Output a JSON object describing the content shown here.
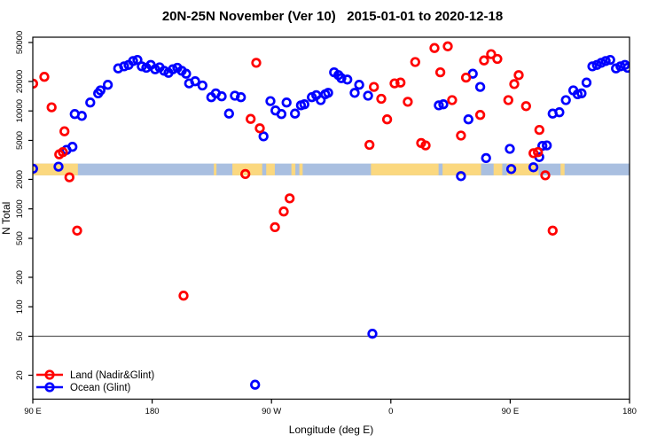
{
  "title": "20N-25N November (Ver 10)   2015-01-01 to 2020-12-18",
  "chart_data": {
    "type": "scatter",
    "title": "20N-25N November (Ver 10)   2015-01-01 to 2020-12-18",
    "xlabel": "Longitude (deg E)",
    "ylabel": "N Total",
    "x_axis": {
      "range": [
        90,
        540
      ],
      "ticks": [
        {
          "value": 90,
          "label": "90 E"
        },
        {
          "value": 180,
          "label": "180"
        },
        {
          "value": 270,
          "label": "90 W"
        },
        {
          "value": 360,
          "label": "0"
        },
        {
          "value": 450,
          "label": "90 E"
        },
        {
          "value": 540,
          "label": "180"
        }
      ]
    },
    "y_axis": {
      "scale": "log",
      "range": [
        11.4,
        56600
      ],
      "ticks": [
        {
          "value": 20,
          "label": "20"
        },
        {
          "value": 50,
          "label": "50"
        },
        {
          "value": 100,
          "label": "100"
        },
        {
          "value": 200,
          "label": "200"
        },
        {
          "value": 500,
          "label": "500"
        },
        {
          "value": 1000,
          "label": "1000"
        },
        {
          "value": 2000,
          "label": "2000"
        },
        {
          "value": 5000,
          "label": "5000"
        },
        {
          "value": 10000,
          "label": "10000"
        },
        {
          "value": 20000,
          "label": "20000"
        },
        {
          "value": 50000,
          "label": "50000"
        }
      ]
    },
    "reference_line": {
      "y": 50,
      "color": "#5a5a5a"
    },
    "map_strip": {
      "value_top": 2900,
      "value_bottom": 2200,
      "ocean_color": "#a9bfe0",
      "land_color": "#fbd87f",
      "segments": [
        {
          "type": "ocean",
          "from": 90,
          "to": 540
        },
        {
          "type": "land",
          "from": 90,
          "to": 124
        },
        {
          "type": "land",
          "from": 226.5,
          "to": 228.5
        },
        {
          "type": "land",
          "from": 240.5,
          "to": 272.5
        },
        {
          "type": "ocean",
          "from": 263,
          "to": 266
        },
        {
          "type": "land",
          "from": 285,
          "to": 288
        },
        {
          "type": "land",
          "from": 291,
          "to": 293.5
        },
        {
          "type": "land",
          "from": 345,
          "to": 471.5
        },
        {
          "type": "ocean",
          "from": 396,
          "to": 399
        },
        {
          "type": "ocean",
          "from": 428,
          "to": 437.5
        },
        {
          "type": "ocean",
          "from": 444,
          "to": 447.5
        },
        {
          "type": "land",
          "from": 488,
          "to": 491
        }
      ]
    },
    "legend": {
      "position": "bottom-left",
      "items": [
        {
          "label": "Land (Nadir&Glint)",
          "color": "#ff0000"
        },
        {
          "label": "Ocean (Glint)",
          "color": "#0000ff"
        }
      ]
    },
    "series": [
      {
        "name": "Land (Nadir&Glint)",
        "color": "#ff0000",
        "points": [
          [
            90.3,
            19000
          ],
          [
            98.7,
            22300
          ],
          [
            104.2,
            10900
          ],
          [
            109.9,
            3600
          ],
          [
            112.7,
            3800
          ],
          [
            113.9,
            6200
          ],
          [
            117.6,
            2100
          ],
          [
            123.4,
            600
          ],
          [
            203.7,
            130
          ],
          [
            250.3,
            2270
          ],
          [
            254.3,
            8300
          ],
          [
            258.5,
            31000
          ],
          [
            261.2,
            6650
          ],
          [
            272.6,
            650
          ],
          [
            279.2,
            940
          ],
          [
            283.7,
            1280
          ],
          [
            343.9,
            4500
          ],
          [
            347.2,
            17600
          ],
          [
            352.8,
            13300
          ],
          [
            357.2,
            8200
          ],
          [
            362.8,
            19100
          ],
          [
            367.3,
            19500
          ],
          [
            372.8,
            12400
          ],
          [
            378.4,
            31600
          ],
          [
            382.9,
            4700
          ],
          [
            386.2,
            4450
          ],
          [
            392.9,
            43900
          ],
          [
            397.3,
            24800
          ],
          [
            402.9,
            45700
          ],
          [
            406.2,
            12900
          ],
          [
            412.9,
            5600
          ],
          [
            416.7,
            21900
          ],
          [
            427.4,
            9100
          ],
          [
            430.3,
            32800
          ],
          [
            435.6,
            38000
          ],
          [
            440.3,
            34000
          ],
          [
            448.6,
            12900
          ],
          [
            453.1,
            18800
          ],
          [
            456.4,
            23200
          ],
          [
            462.0,
            11200
          ],
          [
            467.6,
            3700
          ],
          [
            470.9,
            3800
          ],
          [
            472.0,
            6400
          ],
          [
            476.5,
            2200
          ],
          [
            482.0,
            600
          ]
        ]
      },
      {
        "name": "Ocean (Glint)",
        "color": "#0000ff",
        "points": [
          [
            90.2,
            2570
          ],
          [
            109.4,
            2700
          ],
          [
            115.4,
            4000
          ],
          [
            119.9,
            4300
          ],
          [
            121.6,
            9300
          ],
          [
            127.0,
            8900
          ],
          [
            133.3,
            12200
          ],
          [
            139.3,
            15100
          ],
          [
            141.0,
            16200
          ],
          [
            146.6,
            18500
          ],
          [
            154.4,
            27200
          ],
          [
            158.9,
            28500
          ],
          [
            162.2,
            29500
          ],
          [
            165.6,
            32300
          ],
          [
            168.9,
            33200
          ],
          [
            172.2,
            28500
          ],
          [
            175.6,
            27600
          ],
          [
            178.9,
            29500
          ],
          [
            182.3,
            26600
          ],
          [
            185.6,
            27900
          ],
          [
            189.0,
            25700
          ],
          [
            192.3,
            24500
          ],
          [
            195.6,
            26600
          ],
          [
            199.0,
            27600
          ],
          [
            202.3,
            25700
          ],
          [
            205.6,
            24000
          ],
          [
            207.9,
            19100
          ],
          [
            212.4,
            20100
          ],
          [
            217.9,
            18200
          ],
          [
            224.6,
            13800
          ],
          [
            228.0,
            15100
          ],
          [
            232.4,
            14100
          ],
          [
            238.0,
            9400
          ],
          [
            242.4,
            14300
          ],
          [
            246.9,
            13800
          ],
          [
            257.6,
            16
          ],
          [
            264.0,
            5500
          ],
          [
            269.2,
            12600
          ],
          [
            273.0,
            10100
          ],
          [
            277.5,
            9300
          ],
          [
            281.4,
            12200
          ],
          [
            287.7,
            9400
          ],
          [
            292.2,
            11400
          ],
          [
            294.8,
            11700
          ],
          [
            300.4,
            13800
          ],
          [
            303.8,
            14500
          ],
          [
            307.1,
            12900
          ],
          [
            310.5,
            14800
          ],
          [
            312.7,
            15300
          ],
          [
            317.2,
            24800
          ],
          [
            320.5,
            23200
          ],
          [
            322.7,
            21600
          ],
          [
            327.2,
            20900
          ],
          [
            332.7,
            15300
          ],
          [
            336.1,
            18500
          ],
          [
            342.8,
            14300
          ],
          [
            346.1,
            53
          ],
          [
            396.2,
            11400
          ],
          [
            399.6,
            11700
          ],
          [
            412.9,
            2160
          ],
          [
            418.5,
            8200
          ],
          [
            421.8,
            24000
          ],
          [
            427.4,
            17600
          ],
          [
            431.8,
            3300
          ],
          [
            449.7,
            4100
          ],
          [
            450.8,
            2550
          ],
          [
            467.5,
            2660
          ],
          [
            471.9,
            3380
          ],
          [
            474.3,
            4400
          ],
          [
            477.6,
            4450
          ],
          [
            482.0,
            9400
          ],
          [
            487.1,
            9700
          ],
          [
            492.0,
            12900
          ],
          [
            497.6,
            16200
          ],
          [
            500.9,
            14800
          ],
          [
            503.8,
            15100
          ],
          [
            507.6,
            19500
          ],
          [
            512.0,
            28500
          ],
          [
            515.4,
            29500
          ],
          [
            518.7,
            31000
          ],
          [
            522.0,
            32300
          ],
          [
            525.4,
            33200
          ],
          [
            529.8,
            27200
          ],
          [
            533.2,
            28500
          ],
          [
            536.5,
            29500
          ],
          [
            538.5,
            27600
          ]
        ]
      }
    ]
  }
}
